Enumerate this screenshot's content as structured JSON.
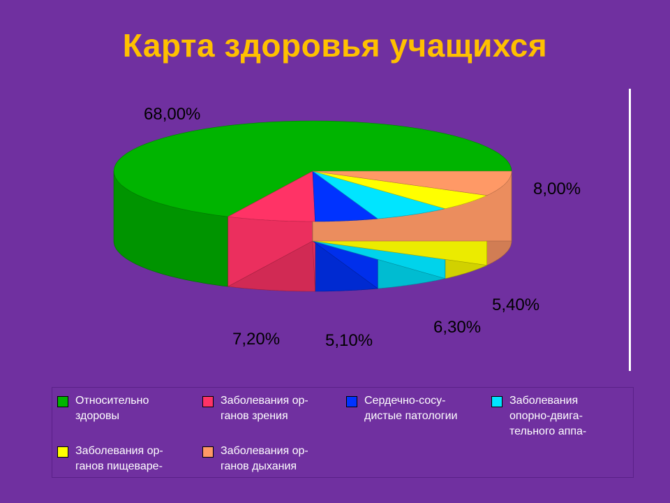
{
  "title": "Карта здоровья учащихся",
  "chart_data": {
    "type": "pie",
    "categories": [
      "Относительно здоровы",
      "Заболевания ор-ганов зрения",
      "Сердечно-сосу-дистые патологии",
      "Заболевания опорно-двига-тельного аппа-",
      "Заболевания ор-ганов пищеваре-",
      "Заболевания ор-ганов дыхания"
    ],
    "values": [
      68.0,
      7.2,
      5.1,
      6.3,
      5.4,
      8.0
    ],
    "value_labels": [
      "68,00%",
      "7,20%",
      "5,10%",
      "6,30%",
      "5,40%",
      "8,00%"
    ],
    "colors": [
      "#00b400",
      "#ff3366",
      "#0033ff",
      "#00e5ff",
      "#ffff00",
      "#ff9966"
    ],
    "legend_placement": "bottom",
    "style": "3d"
  },
  "legend": [
    {
      "text": "Относительно\nздоровы",
      "color": "#00b400"
    },
    {
      "text": "Заболевания ор-\nганов зрения",
      "color": "#ff3366"
    },
    {
      "text": "Сердечно-сосу-\nдистые патологии",
      "color": "#0033ff"
    },
    {
      "text": "Заболевания\nопорно-двига-\nтельного аппа-",
      "color": "#00e5ff"
    },
    {
      "text": "Заболевания ор-\nганов пищеваре-",
      "color": "#ffff00"
    },
    {
      "text": "Заболевания ор-\nганов дыхания",
      "color": "#ff9966"
    }
  ]
}
